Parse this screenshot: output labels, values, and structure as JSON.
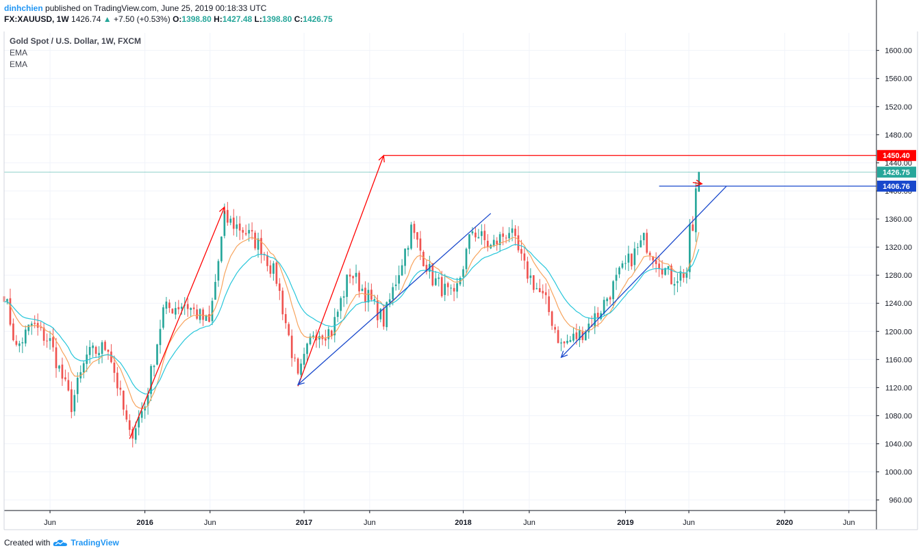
{
  "header": {
    "author": "dinhchien",
    "published": "published on TradingView.com, June 25, 2019 00:18:33 UTC",
    "symbol": "FX:XAUUSD, 1W",
    "last": "1426.74",
    "change_arrow": "▲",
    "change": "+7.50 (+0.53%)",
    "o_label": "O:",
    "o": "1398.80",
    "h_label": "H:",
    "h": "1427.48",
    "l_label": "L:",
    "l": "1398.80",
    "c_label": "C:",
    "c": "1426.75"
  },
  "legend": {
    "title": "Gold Spot / U.S. Dollar, 1W, FXCM",
    "ema1": "EMA",
    "ema2": "EMA"
  },
  "footer": {
    "created_with": "Created with",
    "brand": "TradingView"
  },
  "colors": {
    "up": "#26a69a",
    "down": "#ef5350",
    "ema_fast": "#f7a35c",
    "ema_slow": "#26c6da",
    "red_line": "#ff0000",
    "blue_line": "#1848cc"
  },
  "chart_data": {
    "type": "candlestick",
    "ylim": [
      945,
      1625
    ],
    "yticks": [
      960,
      1000,
      1040,
      1080,
      1120,
      1160,
      1200,
      1240,
      1280,
      1320,
      1360,
      1400,
      1440,
      1480,
      1520,
      1560,
      1600
    ],
    "ytick_labels": [
      "960.00",
      "1000.00",
      "1040.00",
      "1080.00",
      "1120.00",
      "1160.00",
      "1200.00",
      "1240.00",
      "1280.00",
      "1320.00",
      "1360.00",
      "1400.00",
      "1440.00",
      "1480.00",
      "1520.00",
      "1560.00",
      "1600.00"
    ],
    "xlim": [
      "2015-02-16",
      "2020-08-03"
    ],
    "xticks": [
      {
        "date": "2015-06-01",
        "label": "Jun"
      },
      {
        "date": "2016-01-04",
        "label": "2016"
      },
      {
        "date": "2016-06-01",
        "label": "Jun"
      },
      {
        "date": "2017-01-02",
        "label": "2017"
      },
      {
        "date": "2017-06-01",
        "label": "Jun"
      },
      {
        "date": "2018-01-01",
        "label": "2018"
      },
      {
        "date": "2018-06-01",
        "label": "Jun"
      },
      {
        "date": "2019-01-07",
        "label": "2019"
      },
      {
        "date": "2019-06-01",
        "label": "Jun"
      },
      {
        "date": "2020-01-06",
        "label": "2020"
      },
      {
        "date": "2020-06-01",
        "label": "Jun"
      }
    ],
    "price_labels": [
      {
        "value": 1450.4,
        "text": "1450.40",
        "color": "#ff0000"
      },
      {
        "value": 1426.75,
        "text": "1426.75",
        "color": "#26a69a"
      },
      {
        "value": 1406.76,
        "text": "1406.76",
        "color": "#1848cc"
      }
    ],
    "anchors": [
      [
        "2015-02-16",
        1255
      ],
      [
        "2015-03-16",
        1175
      ],
      [
        "2015-04-20",
        1210
      ],
      [
        "2015-06-01",
        1185
      ],
      [
        "2015-07-20",
        1095
      ],
      [
        "2015-08-24",
        1165
      ],
      [
        "2015-10-12",
        1180
      ],
      [
        "2015-11-30",
        1050
      ],
      [
        "2016-01-04",
        1095
      ],
      [
        "2016-02-15",
        1230
      ],
      [
        "2016-04-04",
        1240
      ],
      [
        "2016-05-30",
        1210
      ],
      [
        "2016-07-04",
        1360
      ],
      [
        "2016-08-15",
        1345
      ],
      [
        "2016-09-26",
        1320
      ],
      [
        "2016-10-31",
        1275
      ],
      [
        "2016-12-19",
        1130
      ],
      [
        "2017-01-23",
        1200
      ],
      [
        "2017-03-06",
        1200
      ],
      [
        "2017-04-17",
        1285
      ],
      [
        "2017-05-22",
        1255
      ],
      [
        "2017-07-03",
        1215
      ],
      [
        "2017-09-04",
        1345
      ],
      [
        "2017-10-23",
        1275
      ],
      [
        "2017-12-11",
        1245
      ],
      [
        "2018-01-22",
        1345
      ],
      [
        "2018-03-05",
        1320
      ],
      [
        "2018-04-16",
        1345
      ],
      [
        "2018-05-21",
        1290
      ],
      [
        "2018-07-09",
        1240
      ],
      [
        "2018-08-13",
        1180
      ],
      [
        "2018-09-24",
        1195
      ],
      [
        "2018-11-05",
        1225
      ],
      [
        "2018-12-24",
        1280
      ],
      [
        "2019-02-18",
        1330
      ],
      [
        "2019-03-25",
        1300
      ],
      [
        "2019-04-22",
        1275
      ],
      [
        "2019-05-27",
        1285
      ],
      [
        "2019-06-03",
        1340
      ],
      [
        "2019-06-10",
        1345
      ],
      [
        "2019-06-17",
        1399
      ],
      [
        "2019-06-24",
        1426.75
      ]
    ],
    "ema_fast_period": 10,
    "ema_slow_period": 20,
    "drawings": [
      {
        "type": "arrow",
        "color": "#ff0000",
        "from": [
          "2015-11-30",
          1047
        ],
        "to": [
          "2016-07-04",
          1377
        ]
      },
      {
        "type": "arrow",
        "color": "#ff0000",
        "from": [
          "2016-12-19",
          1122
        ],
        "to": [
          "2017-07-03",
          1450.4
        ]
      },
      {
        "type": "ray",
        "color": "#ff0000",
        "from": [
          "2017-07-03",
          1450.4
        ],
        "to": [
          "2020-08-03",
          1450.4
        ]
      },
      {
        "type": "arrow",
        "color": "#1848cc",
        "from": [
          "2018-03-05",
          1368
        ],
        "to": [
          "2016-12-19",
          1124
        ]
      },
      {
        "type": "arrow",
        "color": "#1848cc",
        "from": [
          "2019-08-26",
          1406.76
        ],
        "to": [
          "2018-08-13",
          1163
        ]
      },
      {
        "type": "line",
        "color": "#1848cc",
        "from": [
          "2019-03-25",
          1406.76
        ],
        "to": [
          "2020-08-03",
          1406.76
        ]
      },
      {
        "type": "arrow",
        "color": "#ff0000",
        "from": [
          "2019-06-10",
          1412
        ],
        "to": [
          "2019-07-01",
          1410
        ]
      }
    ]
  }
}
